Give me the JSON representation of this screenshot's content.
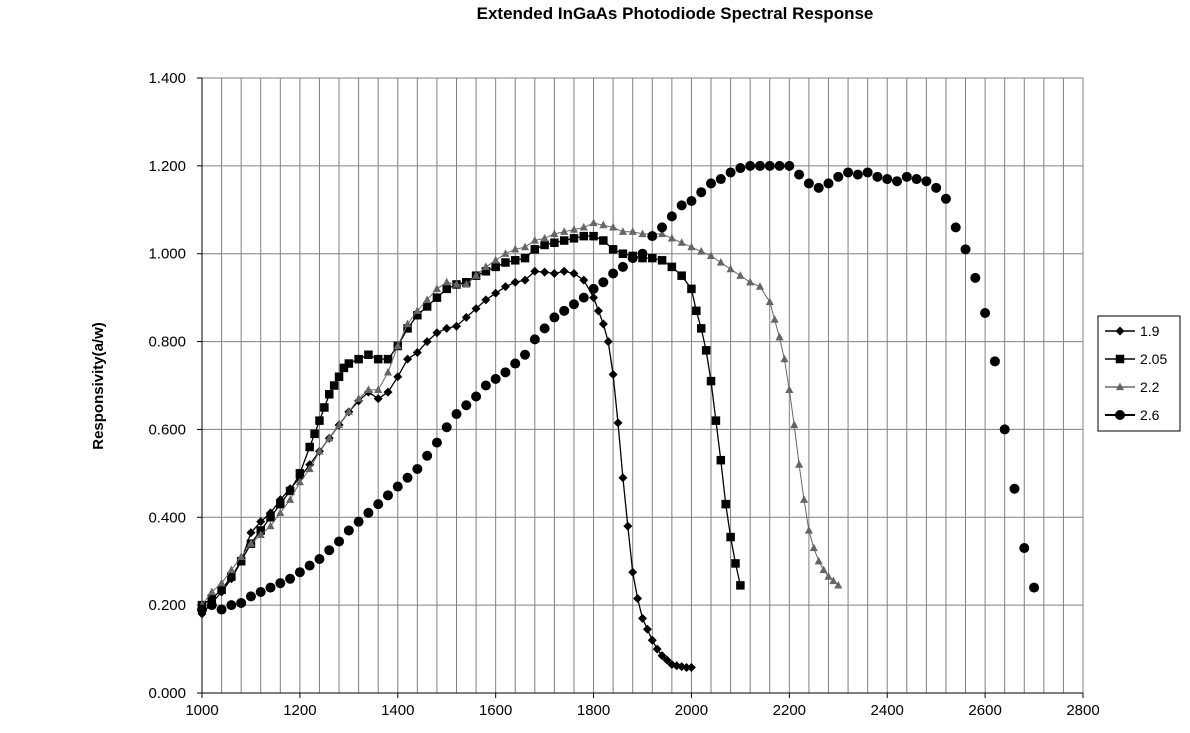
{
  "chart_data": {
    "type": "line",
    "title": "Extended  InGaAs Photodiode Spectral Response",
    "xlabel": "",
    "ylabel": "Responsivity(a/w)",
    "xlim": [
      1000,
      2800
    ],
    "ylim": [
      0,
      1.4
    ],
    "x_ticks": [
      "1000",
      "1200",
      "1400",
      "1600",
      "1800",
      "2000",
      "2200",
      "2400",
      "2600",
      "2800"
    ],
    "y_ticks": [
      "0.000",
      "0.200",
      "0.400",
      "0.600",
      "0.800",
      "1.000",
      "1.200",
      "1.400"
    ],
    "grid": true,
    "legend_position": "right",
    "series": [
      {
        "name": "1.9",
        "marker": "diamond",
        "color": "#000000",
        "points": [
          [
            1000,
            0.18
          ],
          [
            1020,
            0.205
          ],
          [
            1040,
            0.23
          ],
          [
            1060,
            0.26
          ],
          [
            1080,
            0.3
          ],
          [
            1100,
            0.365
          ],
          [
            1120,
            0.39
          ],
          [
            1140,
            0.41
          ],
          [
            1160,
            0.44
          ],
          [
            1180,
            0.465
          ],
          [
            1200,
            0.49
          ],
          [
            1220,
            0.52
          ],
          [
            1240,
            0.55
          ],
          [
            1260,
            0.58
          ],
          [
            1280,
            0.61
          ],
          [
            1300,
            0.64
          ],
          [
            1320,
            0.665
          ],
          [
            1340,
            0.685
          ],
          [
            1360,
            0.67
          ],
          [
            1380,
            0.685
          ],
          [
            1400,
            0.72
          ],
          [
            1420,
            0.76
          ],
          [
            1440,
            0.775
          ],
          [
            1460,
            0.8
          ],
          [
            1480,
            0.82
          ],
          [
            1500,
            0.83
          ],
          [
            1520,
            0.835
          ],
          [
            1540,
            0.855
          ],
          [
            1560,
            0.875
          ],
          [
            1580,
            0.895
          ],
          [
            1600,
            0.91
          ],
          [
            1620,
            0.925
          ],
          [
            1640,
            0.935
          ],
          [
            1660,
            0.94
          ],
          [
            1680,
            0.96
          ],
          [
            1700,
            0.958
          ],
          [
            1720,
            0.955
          ],
          [
            1740,
            0.96
          ],
          [
            1760,
            0.955
          ],
          [
            1780,
            0.94
          ],
          [
            1800,
            0.9
          ],
          [
            1810,
            0.87
          ],
          [
            1820,
            0.84
          ],
          [
            1830,
            0.8
          ],
          [
            1840,
            0.725
          ],
          [
            1850,
            0.615
          ],
          [
            1860,
            0.49
          ],
          [
            1870,
            0.38
          ],
          [
            1880,
            0.275
          ],
          [
            1890,
            0.215
          ],
          [
            1900,
            0.17
          ],
          [
            1910,
            0.145
          ],
          [
            1920,
            0.12
          ],
          [
            1930,
            0.1
          ],
          [
            1940,
            0.085
          ],
          [
            1950,
            0.075
          ],
          [
            1960,
            0.065
          ],
          [
            1970,
            0.062
          ],
          [
            1980,
            0.06
          ],
          [
            1990,
            0.058
          ],
          [
            2000,
            0.058
          ]
        ]
      },
      {
        "name": "2.05",
        "marker": "square",
        "color": "#000000",
        "points": [
          [
            1000,
            0.2
          ],
          [
            1020,
            0.215
          ],
          [
            1040,
            0.235
          ],
          [
            1060,
            0.265
          ],
          [
            1080,
            0.3
          ],
          [
            1100,
            0.34
          ],
          [
            1120,
            0.37
          ],
          [
            1140,
            0.4
          ],
          [
            1160,
            0.43
          ],
          [
            1180,
            0.46
          ],
          [
            1200,
            0.5
          ],
          [
            1220,
            0.56
          ],
          [
            1230,
            0.59
          ],
          [
            1240,
            0.62
          ],
          [
            1250,
            0.65
          ],
          [
            1260,
            0.68
          ],
          [
            1270,
            0.7
          ],
          [
            1280,
            0.72
          ],
          [
            1290,
            0.74
          ],
          [
            1300,
            0.75
          ],
          [
            1320,
            0.76
          ],
          [
            1340,
            0.77
          ],
          [
            1360,
            0.76
          ],
          [
            1380,
            0.76
          ],
          [
            1400,
            0.79
          ],
          [
            1420,
            0.83
          ],
          [
            1440,
            0.86
          ],
          [
            1460,
            0.88
          ],
          [
            1480,
            0.9
          ],
          [
            1500,
            0.92
          ],
          [
            1520,
            0.93
          ],
          [
            1540,
            0.935
          ],
          [
            1560,
            0.95
          ],
          [
            1580,
            0.96
          ],
          [
            1600,
            0.97
          ],
          [
            1620,
            0.98
          ],
          [
            1640,
            0.985
          ],
          [
            1660,
            0.99
          ],
          [
            1680,
            1.01
          ],
          [
            1700,
            1.02
          ],
          [
            1720,
            1.025
          ],
          [
            1740,
            1.03
          ],
          [
            1760,
            1.035
          ],
          [
            1780,
            1.04
          ],
          [
            1800,
            1.04
          ],
          [
            1820,
            1.03
          ],
          [
            1840,
            1.01
          ],
          [
            1860,
            1.0
          ],
          [
            1880,
            0.995
          ],
          [
            1900,
            0.99
          ],
          [
            1920,
            0.99
          ],
          [
            1940,
            0.985
          ],
          [
            1960,
            0.97
          ],
          [
            1980,
            0.95
          ],
          [
            2000,
            0.92
          ],
          [
            2010,
            0.87
          ],
          [
            2020,
            0.83
          ],
          [
            2030,
            0.78
          ],
          [
            2040,
            0.71
          ],
          [
            2050,
            0.62
          ],
          [
            2060,
            0.53
          ],
          [
            2070,
            0.43
          ],
          [
            2080,
            0.355
          ],
          [
            2090,
            0.295
          ],
          [
            2100,
            0.245
          ]
        ]
      },
      {
        "name": "2.2",
        "marker": "triangle",
        "color": "#666666",
        "points": [
          [
            1000,
            0.2
          ],
          [
            1020,
            0.23
          ],
          [
            1040,
            0.25
          ],
          [
            1060,
            0.28
          ],
          [
            1080,
            0.31
          ],
          [
            1100,
            0.34
          ],
          [
            1120,
            0.36
          ],
          [
            1140,
            0.38
          ],
          [
            1160,
            0.41
          ],
          [
            1180,
            0.44
          ],
          [
            1200,
            0.48
          ],
          [
            1220,
            0.51
          ],
          [
            1240,
            0.55
          ],
          [
            1260,
            0.58
          ],
          [
            1280,
            0.61
          ],
          [
            1300,
            0.64
          ],
          [
            1320,
            0.67
          ],
          [
            1340,
            0.69
          ],
          [
            1360,
            0.69
          ],
          [
            1380,
            0.73
          ],
          [
            1400,
            0.79
          ],
          [
            1420,
            0.84
          ],
          [
            1440,
            0.87
          ],
          [
            1460,
            0.895
          ],
          [
            1480,
            0.92
          ],
          [
            1500,
            0.935
          ],
          [
            1520,
            0.93
          ],
          [
            1540,
            0.93
          ],
          [
            1560,
            0.95
          ],
          [
            1580,
            0.97
          ],
          [
            1600,
            0.985
          ],
          [
            1620,
            1.0
          ],
          [
            1640,
            1.01
          ],
          [
            1660,
            1.015
          ],
          [
            1680,
            1.03
          ],
          [
            1700,
            1.035
          ],
          [
            1720,
            1.045
          ],
          [
            1740,
            1.05
          ],
          [
            1760,
            1.055
          ],
          [
            1780,
            1.06
          ],
          [
            1800,
            1.07
          ],
          [
            1820,
            1.065
          ],
          [
            1840,
            1.06
          ],
          [
            1860,
            1.05
          ],
          [
            1880,
            1.05
          ],
          [
            1900,
            1.045
          ],
          [
            1920,
            1.045
          ],
          [
            1940,
            1.045
          ],
          [
            1960,
            1.035
          ],
          [
            1980,
            1.025
          ],
          [
            2000,
            1.015
          ],
          [
            2020,
            1.005
          ],
          [
            2040,
            0.995
          ],
          [
            2060,
            0.98
          ],
          [
            2080,
            0.965
          ],
          [
            2100,
            0.95
          ],
          [
            2120,
            0.935
          ],
          [
            2140,
            0.925
          ],
          [
            2160,
            0.89
          ],
          [
            2170,
            0.85
          ],
          [
            2180,
            0.81
          ],
          [
            2190,
            0.76
          ],
          [
            2200,
            0.69
          ],
          [
            2210,
            0.61
          ],
          [
            2220,
            0.52
          ],
          [
            2230,
            0.44
          ],
          [
            2240,
            0.37
          ],
          [
            2250,
            0.33
          ],
          [
            2260,
            0.3
          ],
          [
            2270,
            0.28
          ],
          [
            2280,
            0.265
          ],
          [
            2290,
            0.255
          ],
          [
            2300,
            0.245
          ]
        ]
      },
      {
        "name": "2.6",
        "marker": "circle",
        "color": "#000000",
        "points": [
          [
            1000,
            0.19
          ],
          [
            1020,
            0.2
          ],
          [
            1040,
            0.19
          ],
          [
            1060,
            0.2
          ],
          [
            1080,
            0.205
          ],
          [
            1100,
            0.22
          ],
          [
            1120,
            0.23
          ],
          [
            1140,
            0.24
          ],
          [
            1160,
            0.25
          ],
          [
            1180,
            0.26
          ],
          [
            1200,
            0.275
          ],
          [
            1220,
            0.29
          ],
          [
            1240,
            0.305
          ],
          [
            1260,
            0.325
          ],
          [
            1280,
            0.345
          ],
          [
            1300,
            0.37
          ],
          [
            1320,
            0.39
          ],
          [
            1340,
            0.41
          ],
          [
            1360,
            0.43
          ],
          [
            1380,
            0.45
          ],
          [
            1400,
            0.47
          ],
          [
            1420,
            0.49
          ],
          [
            1440,
            0.51
          ],
          [
            1460,
            0.54
          ],
          [
            1480,
            0.57
          ],
          [
            1500,
            0.605
          ],
          [
            1520,
            0.635
          ],
          [
            1540,
            0.655
          ],
          [
            1560,
            0.675
          ],
          [
            1580,
            0.7
          ],
          [
            1600,
            0.715
          ],
          [
            1620,
            0.73
          ],
          [
            1640,
            0.75
          ],
          [
            1660,
            0.77
          ],
          [
            1680,
            0.805
          ],
          [
            1700,
            0.83
          ],
          [
            1720,
            0.855
          ],
          [
            1740,
            0.87
          ],
          [
            1760,
            0.885
          ],
          [
            1780,
            0.9
          ],
          [
            1800,
            0.92
          ],
          [
            1820,
            0.935
          ],
          [
            1840,
            0.955
          ],
          [
            1860,
            0.97
          ],
          [
            1880,
            0.99
          ],
          [
            1900,
            1.0
          ],
          [
            1920,
            1.04
          ],
          [
            1940,
            1.06
          ],
          [
            1960,
            1.085
          ],
          [
            1980,
            1.11
          ],
          [
            2000,
            1.12
          ],
          [
            2020,
            1.14
          ],
          [
            2040,
            1.16
          ],
          [
            2060,
            1.17
          ],
          [
            2080,
            1.185
          ],
          [
            2100,
            1.195
          ],
          [
            2120,
            1.2
          ],
          [
            2140,
            1.2
          ],
          [
            2160,
            1.2
          ],
          [
            2180,
            1.2
          ],
          [
            2200,
            1.2
          ],
          [
            2220,
            1.18
          ],
          [
            2240,
            1.16
          ],
          [
            2260,
            1.15
          ],
          [
            2280,
            1.16
          ],
          [
            2300,
            1.175
          ],
          [
            2320,
            1.185
          ],
          [
            2340,
            1.18
          ],
          [
            2360,
            1.185
          ],
          [
            2380,
            1.175
          ],
          [
            2400,
            1.17
          ],
          [
            2420,
            1.165
          ],
          [
            2440,
            1.175
          ],
          [
            2460,
            1.17
          ],
          [
            2480,
            1.165
          ],
          [
            2500,
            1.15
          ],
          [
            2520,
            1.125
          ],
          [
            2540,
            1.06
          ],
          [
            2560,
            1.01
          ],
          [
            2580,
            0.945
          ],
          [
            2600,
            0.865
          ],
          [
            2620,
            0.755
          ],
          [
            2640,
            0.6
          ],
          [
            2660,
            0.465
          ],
          [
            2680,
            0.33
          ],
          [
            2700,
            0.24
          ]
        ]
      }
    ]
  }
}
